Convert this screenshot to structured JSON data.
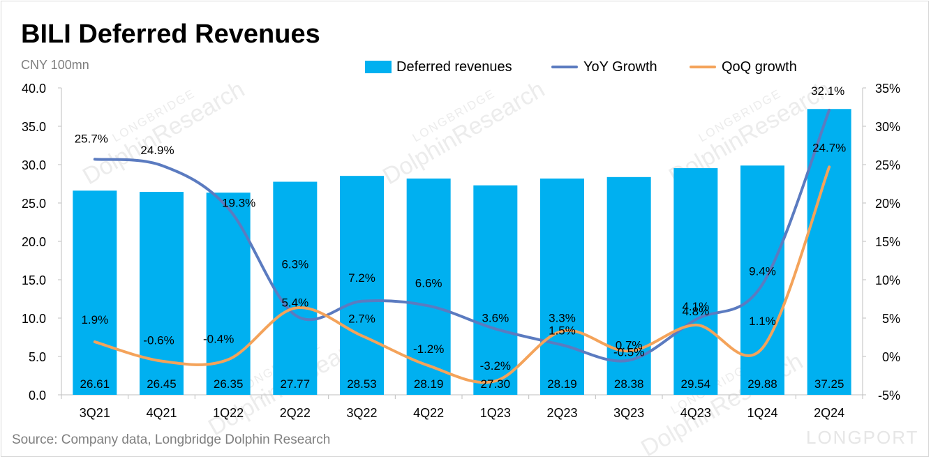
{
  "title": "BILI Deferred Revenues",
  "unit_label": "CNY 100mn",
  "source": "Source: Company data, Longbridge Dolphin Research",
  "watermark": {
    "brand": "DolphinResearch",
    "sub": "LONGBRIDGE",
    "logo": "LONGPORT"
  },
  "colors": {
    "bar": "#00b0f0",
    "yoy": "#5b7bc0",
    "qoq": "#f4a35a"
  },
  "chart_data": {
    "type": "bar",
    "categories": [
      "3Q21",
      "4Q21",
      "1Q22",
      "2Q22",
      "3Q22",
      "4Q22",
      "1Q23",
      "2Q23",
      "3Q23",
      "4Q23",
      "1Q24",
      "2Q24"
    ],
    "series": [
      {
        "name": "Deferred revenues",
        "type": "bar",
        "axis": "left",
        "values": [
          26.61,
          26.45,
          26.35,
          27.77,
          28.53,
          28.19,
          27.3,
          28.19,
          28.38,
          29.54,
          29.88,
          37.25
        ],
        "labels": [
          "26.61",
          "26.45",
          "26.35",
          "27.77",
          "28.53",
          "28.19",
          "27.30",
          "28.19",
          "28.38",
          "29.54",
          "29.88",
          "37.25"
        ]
      },
      {
        "name": "YoY Growth",
        "type": "line",
        "axis": "right",
        "values": [
          25.7,
          24.9,
          19.3,
          5.4,
          7.2,
          6.6,
          3.6,
          1.5,
          -0.5,
          4.8,
          9.4,
          32.1
        ],
        "labels": [
          "25.7%",
          "24.9%",
          "19.3%",
          "5.4%",
          "7.2%",
          "6.6%",
          "3.6%",
          "1.5%",
          "-0.5%",
          "4.8%",
          "9.4%",
          "32.1%"
        ]
      },
      {
        "name": "QoQ growth",
        "type": "line",
        "axis": "right",
        "values": [
          1.9,
          -0.6,
          -0.4,
          6.3,
          2.7,
          -1.2,
          -3.2,
          3.3,
          0.7,
          4.1,
          1.1,
          24.7
        ],
        "labels": [
          "1.9%",
          "-0.6%",
          "-0.4%",
          "6.3%",
          "2.7%",
          "-1.2%",
          "-3.2%",
          "3.3%",
          "0.7%",
          "4.1%",
          "1.1%",
          "24.7%"
        ]
      }
    ],
    "y_left": {
      "min": 0,
      "max": 40,
      "ticks": [
        "0.0",
        "5.0",
        "10.0",
        "15.0",
        "20.0",
        "25.0",
        "30.0",
        "35.0",
        "40.0"
      ]
    },
    "y_right": {
      "min": -5,
      "max": 35,
      "ticks": [
        "-5%",
        "0%",
        "5%",
        "10%",
        "15%",
        "20%",
        "25%",
        "30%",
        "35%"
      ]
    },
    "grid": false,
    "legend_position": "top-right"
  }
}
